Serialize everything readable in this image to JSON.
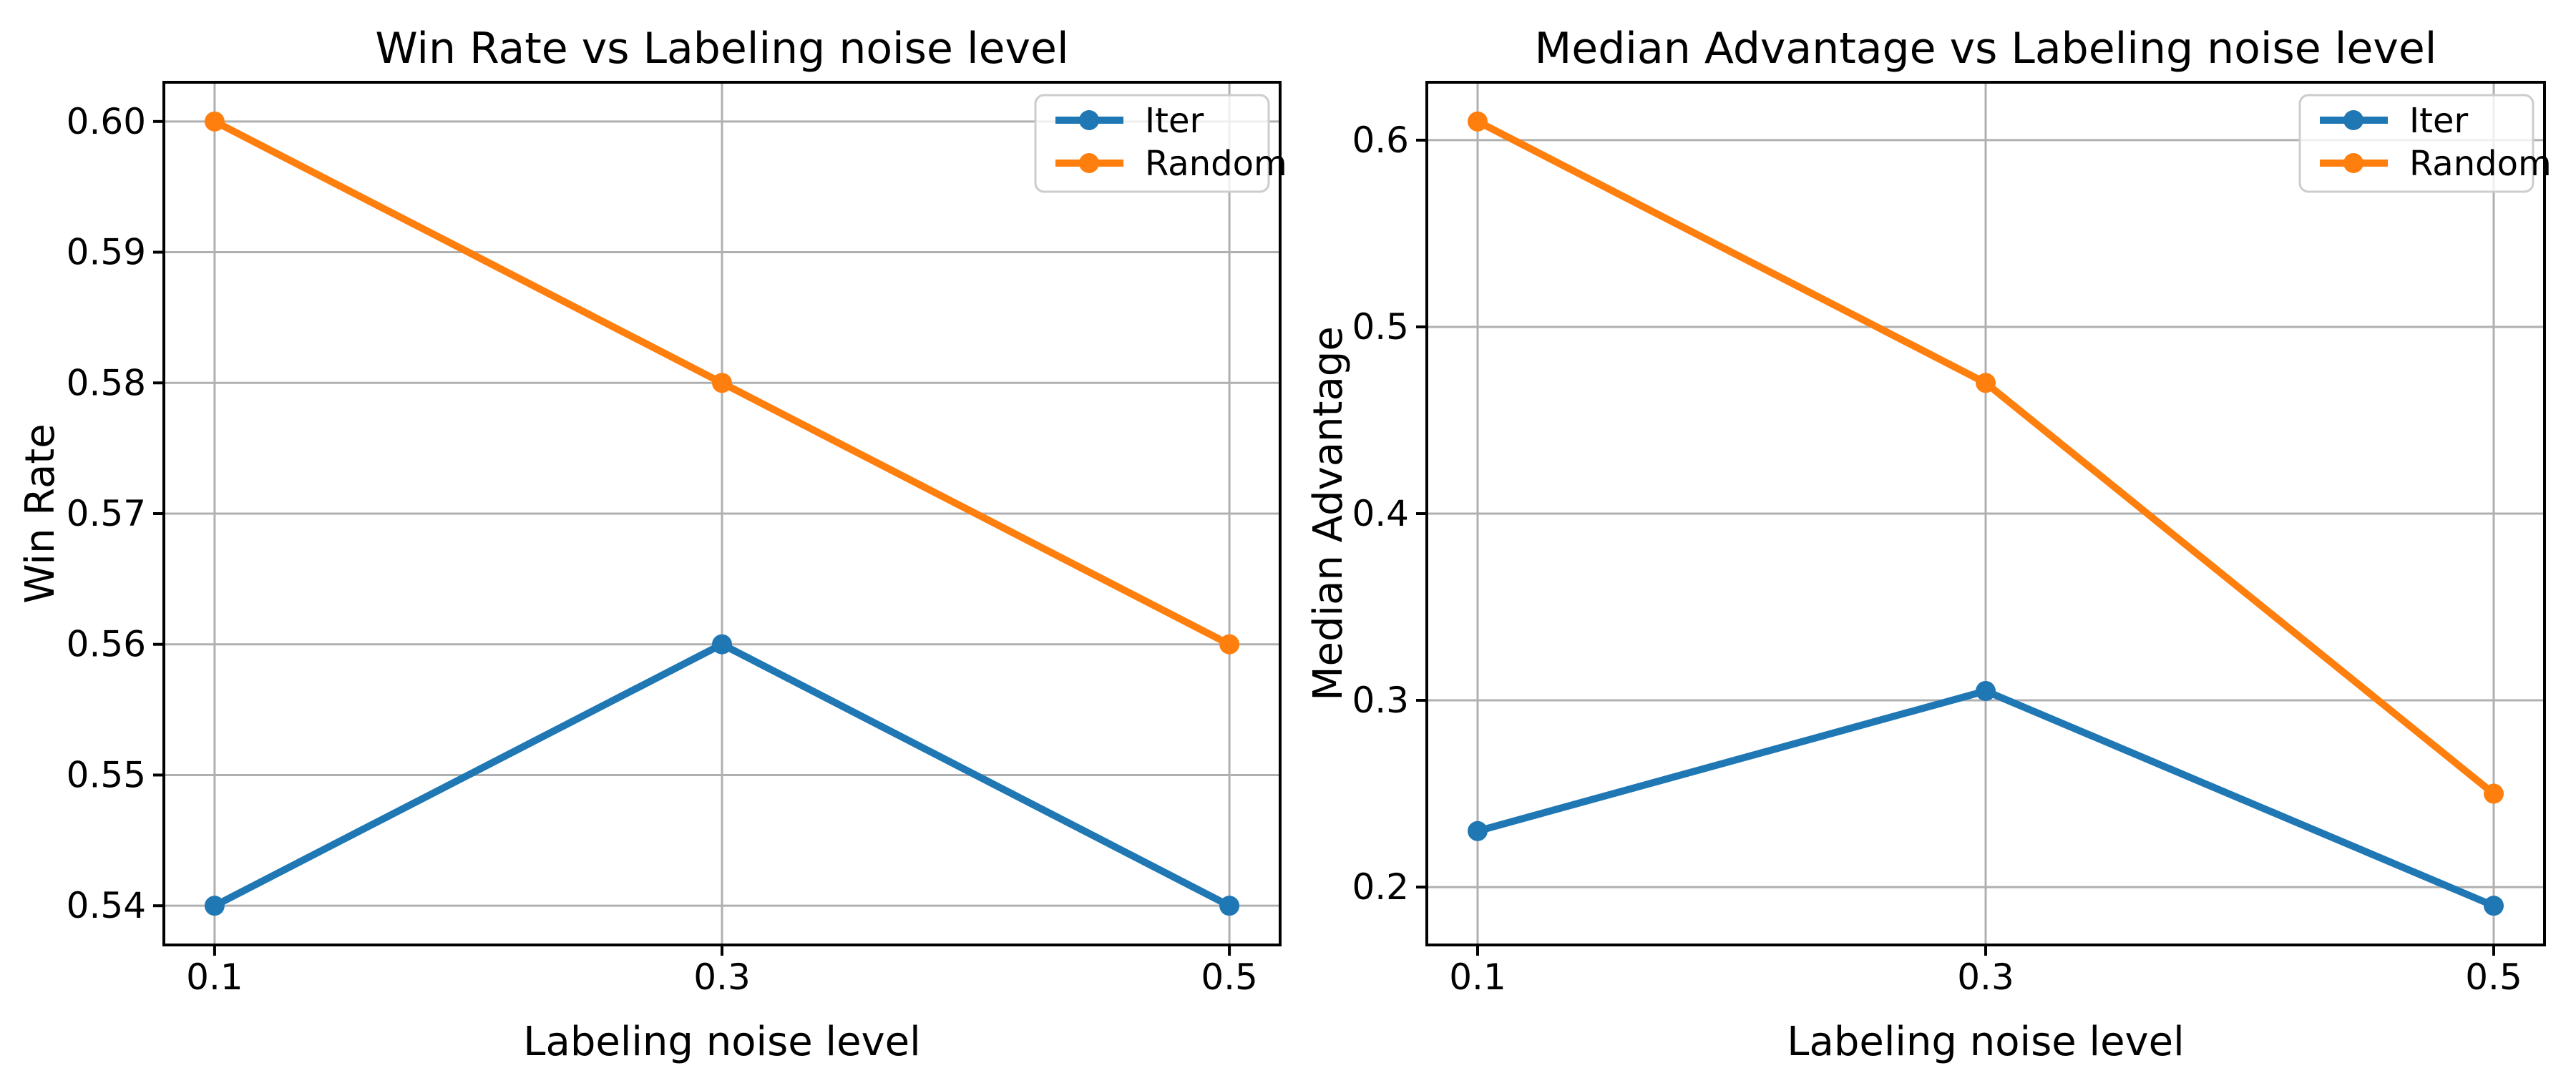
{
  "figure": {
    "background": "#ffffff",
    "grid_color": "#b0b0b0",
    "spine_color": "#000000",
    "text_color": "#000000",
    "legend_border_color": "#cccccc",
    "legend_bg_color": "rgba(255,255,255,0.8)"
  },
  "chart_data": [
    {
      "type": "line",
      "title": "Win Rate vs Labeling noise level",
      "xlabel": "Labeling noise level",
      "ylabel": "Win Rate",
      "x": [
        0.1,
        0.3,
        0.5
      ],
      "series": [
        {
          "name": "Iter",
          "color": "#1f77b4",
          "values": [
            0.54,
            0.56,
            0.54
          ]
        },
        {
          "name": "Random",
          "color": "#ff7f0e",
          "values": [
            0.6,
            0.58,
            0.56
          ]
        }
      ],
      "xlim": [
        0.08,
        0.52
      ],
      "ylim": [
        0.537,
        0.603
      ],
      "xticks": [
        0.1,
        0.3,
        0.5
      ],
      "xtick_labels": [
        "0.1",
        "0.3",
        "0.5"
      ],
      "yticks": [
        0.54,
        0.55,
        0.56,
        0.57,
        0.58,
        0.59,
        0.6
      ],
      "ytick_labels": [
        "0.54",
        "0.55",
        "0.56",
        "0.57",
        "0.58",
        "0.59",
        "0.60"
      ],
      "grid": true,
      "legend_position": "upper right"
    },
    {
      "type": "line",
      "title": "Median Advantage vs Labeling noise level",
      "xlabel": "Labeling noise level",
      "ylabel": "Median Advantage",
      "x": [
        0.1,
        0.3,
        0.5
      ],
      "series": [
        {
          "name": "Iter",
          "color": "#1f77b4",
          "values": [
            0.23,
            0.305,
            0.19
          ]
        },
        {
          "name": "Random",
          "color": "#ff7f0e",
          "values": [
            0.61,
            0.47,
            0.25
          ]
        }
      ],
      "xlim": [
        0.08,
        0.52
      ],
      "ylim": [
        0.169,
        0.631
      ],
      "xticks": [
        0.1,
        0.3,
        0.5
      ],
      "xtick_labels": [
        "0.1",
        "0.3",
        "0.5"
      ],
      "yticks": [
        0.2,
        0.3,
        0.4,
        0.5,
        0.6
      ],
      "ytick_labels": [
        "0.2",
        "0.3",
        "0.4",
        "0.5",
        "0.6"
      ],
      "grid": true,
      "legend_position": "upper right"
    }
  ]
}
